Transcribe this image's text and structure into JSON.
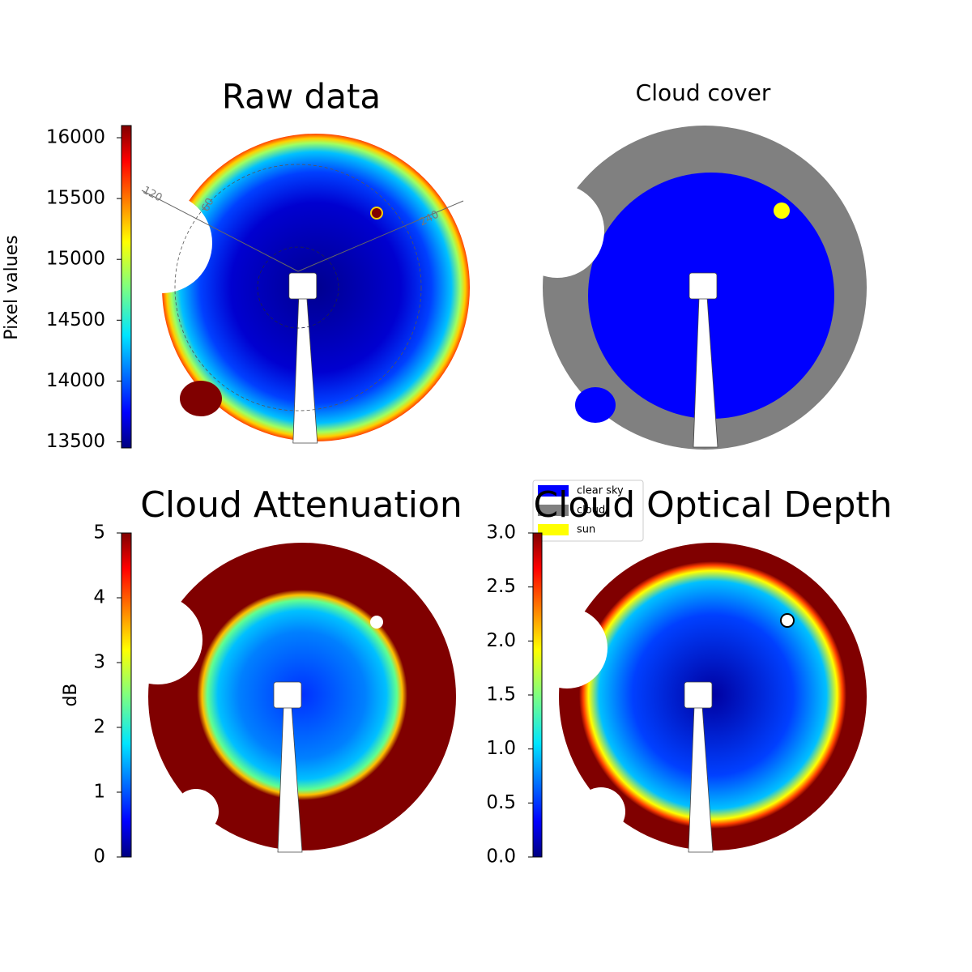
{
  "chart_data": [
    {
      "type": "image",
      "title": "Raw data",
      "colorbar_label": "Pixel values",
      "colormap": "jet",
      "ylim": [
        13450,
        16100
      ],
      "yticks": [
        13500,
        14000,
        14500,
        15000,
        15500,
        16000
      ],
      "annotations": [
        "120",
        "60",
        "240"
      ]
    },
    {
      "type": "mask",
      "title": "Cloud cover",
      "series": [
        {
          "name": "clear sky",
          "color": "#0000ff"
        },
        {
          "name": "cloud",
          "color": "#808080"
        },
        {
          "name": "sun",
          "color": "#ffff00"
        }
      ]
    },
    {
      "type": "image",
      "title": "Cloud Attenuation",
      "colorbar_label": "dB",
      "colormap": "jet",
      "ylim": [
        0,
        5
      ],
      "yticks": [
        0,
        1,
        2,
        3,
        4,
        5
      ]
    },
    {
      "type": "image",
      "title": "Cloud Optical Depth",
      "colormap": "jet",
      "ylim": [
        0,
        3
      ],
      "yticks": [
        {
          "value": 0,
          "label": "0.0"
        },
        {
          "value": 0.5,
          "label": "0.5"
        },
        {
          "value": 1,
          "label": "1.0"
        },
        {
          "value": 1.5,
          "label": "1.5"
        },
        {
          "value": 2,
          "label": "2.0"
        },
        {
          "value": 2.5,
          "label": "2.5"
        },
        {
          "value": 3,
          "label": "3.0"
        }
      ]
    }
  ]
}
